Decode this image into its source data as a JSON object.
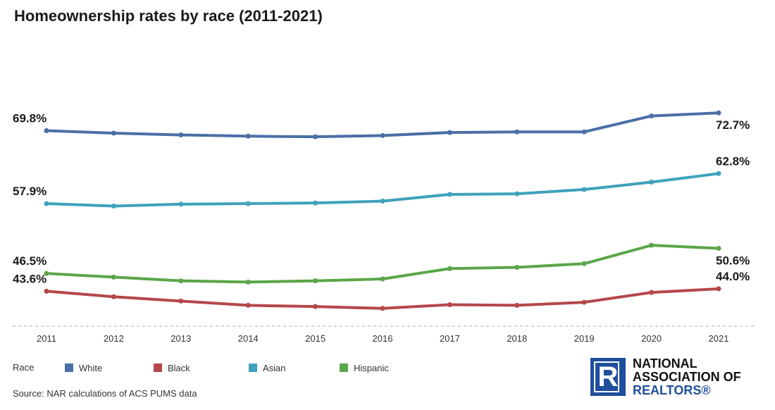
{
  "title": "Homeownership rates by race (2011-2021)",
  "chart_data": {
    "type": "line",
    "title": "Homeownership rates by race (2011-2021)",
    "xlabel": "",
    "ylabel": "",
    "categories": [
      "2011",
      "2012",
      "2013",
      "2014",
      "2015",
      "2016",
      "2017",
      "2018",
      "2019",
      "2020",
      "2021"
    ],
    "series": [
      {
        "name": "White",
        "color": "#4a6fa5",
        "values": [
          69.8,
          69.4,
          69.1,
          68.9,
          68.8,
          69.0,
          69.5,
          69.6,
          69.6,
          72.2,
          72.7
        ],
        "labels": {
          "first": "69.8%",
          "last": "72.7%"
        }
      },
      {
        "name": "Asian",
        "color": "#3fa2bc",
        "values": [
          57.9,
          57.5,
          57.8,
          57.9,
          58.0,
          58.3,
          59.4,
          59.5,
          60.2,
          61.4,
          62.8
        ],
        "labels": {
          "first": "57.9%",
          "last": "62.8%"
        }
      },
      {
        "name": "Hispanic",
        "color": "#5aa64a",
        "values": [
          46.5,
          45.9,
          45.3,
          45.1,
          45.3,
          45.6,
          47.3,
          47.5,
          48.1,
          51.1,
          50.6
        ],
        "labels": {
          "first": "46.5%",
          "last": "50.6%"
        }
      },
      {
        "name": "Black",
        "color": "#b5474a",
        "values": [
          43.6,
          42.7,
          42.0,
          41.3,
          41.1,
          40.8,
          41.4,
          41.3,
          41.8,
          43.4,
          44.0
        ],
        "labels": {
          "first": "43.6%",
          "last": "44.0%"
        }
      }
    ],
    "ylim": [
      37.9,
      75
    ],
    "grid": false,
    "baseline_dashed": true,
    "legend_position": "bottom-left"
  },
  "legend": {
    "title": "Race",
    "items": [
      {
        "label": "White",
        "color": "#4a6fa5"
      },
      {
        "label": "Black",
        "color": "#b5474a"
      },
      {
        "label": "Asian",
        "color": "#3fa2bc"
      },
      {
        "label": "Hispanic",
        "color": "#5aa64a"
      }
    ]
  },
  "source": "Source: NAR calculations of ACS PUMS data",
  "logo": {
    "letter": "R",
    "line1": "NATIONAL",
    "line2": "ASSOCIATION OF",
    "line3": "REALTORS®",
    "color": "#1f4e9c"
  }
}
